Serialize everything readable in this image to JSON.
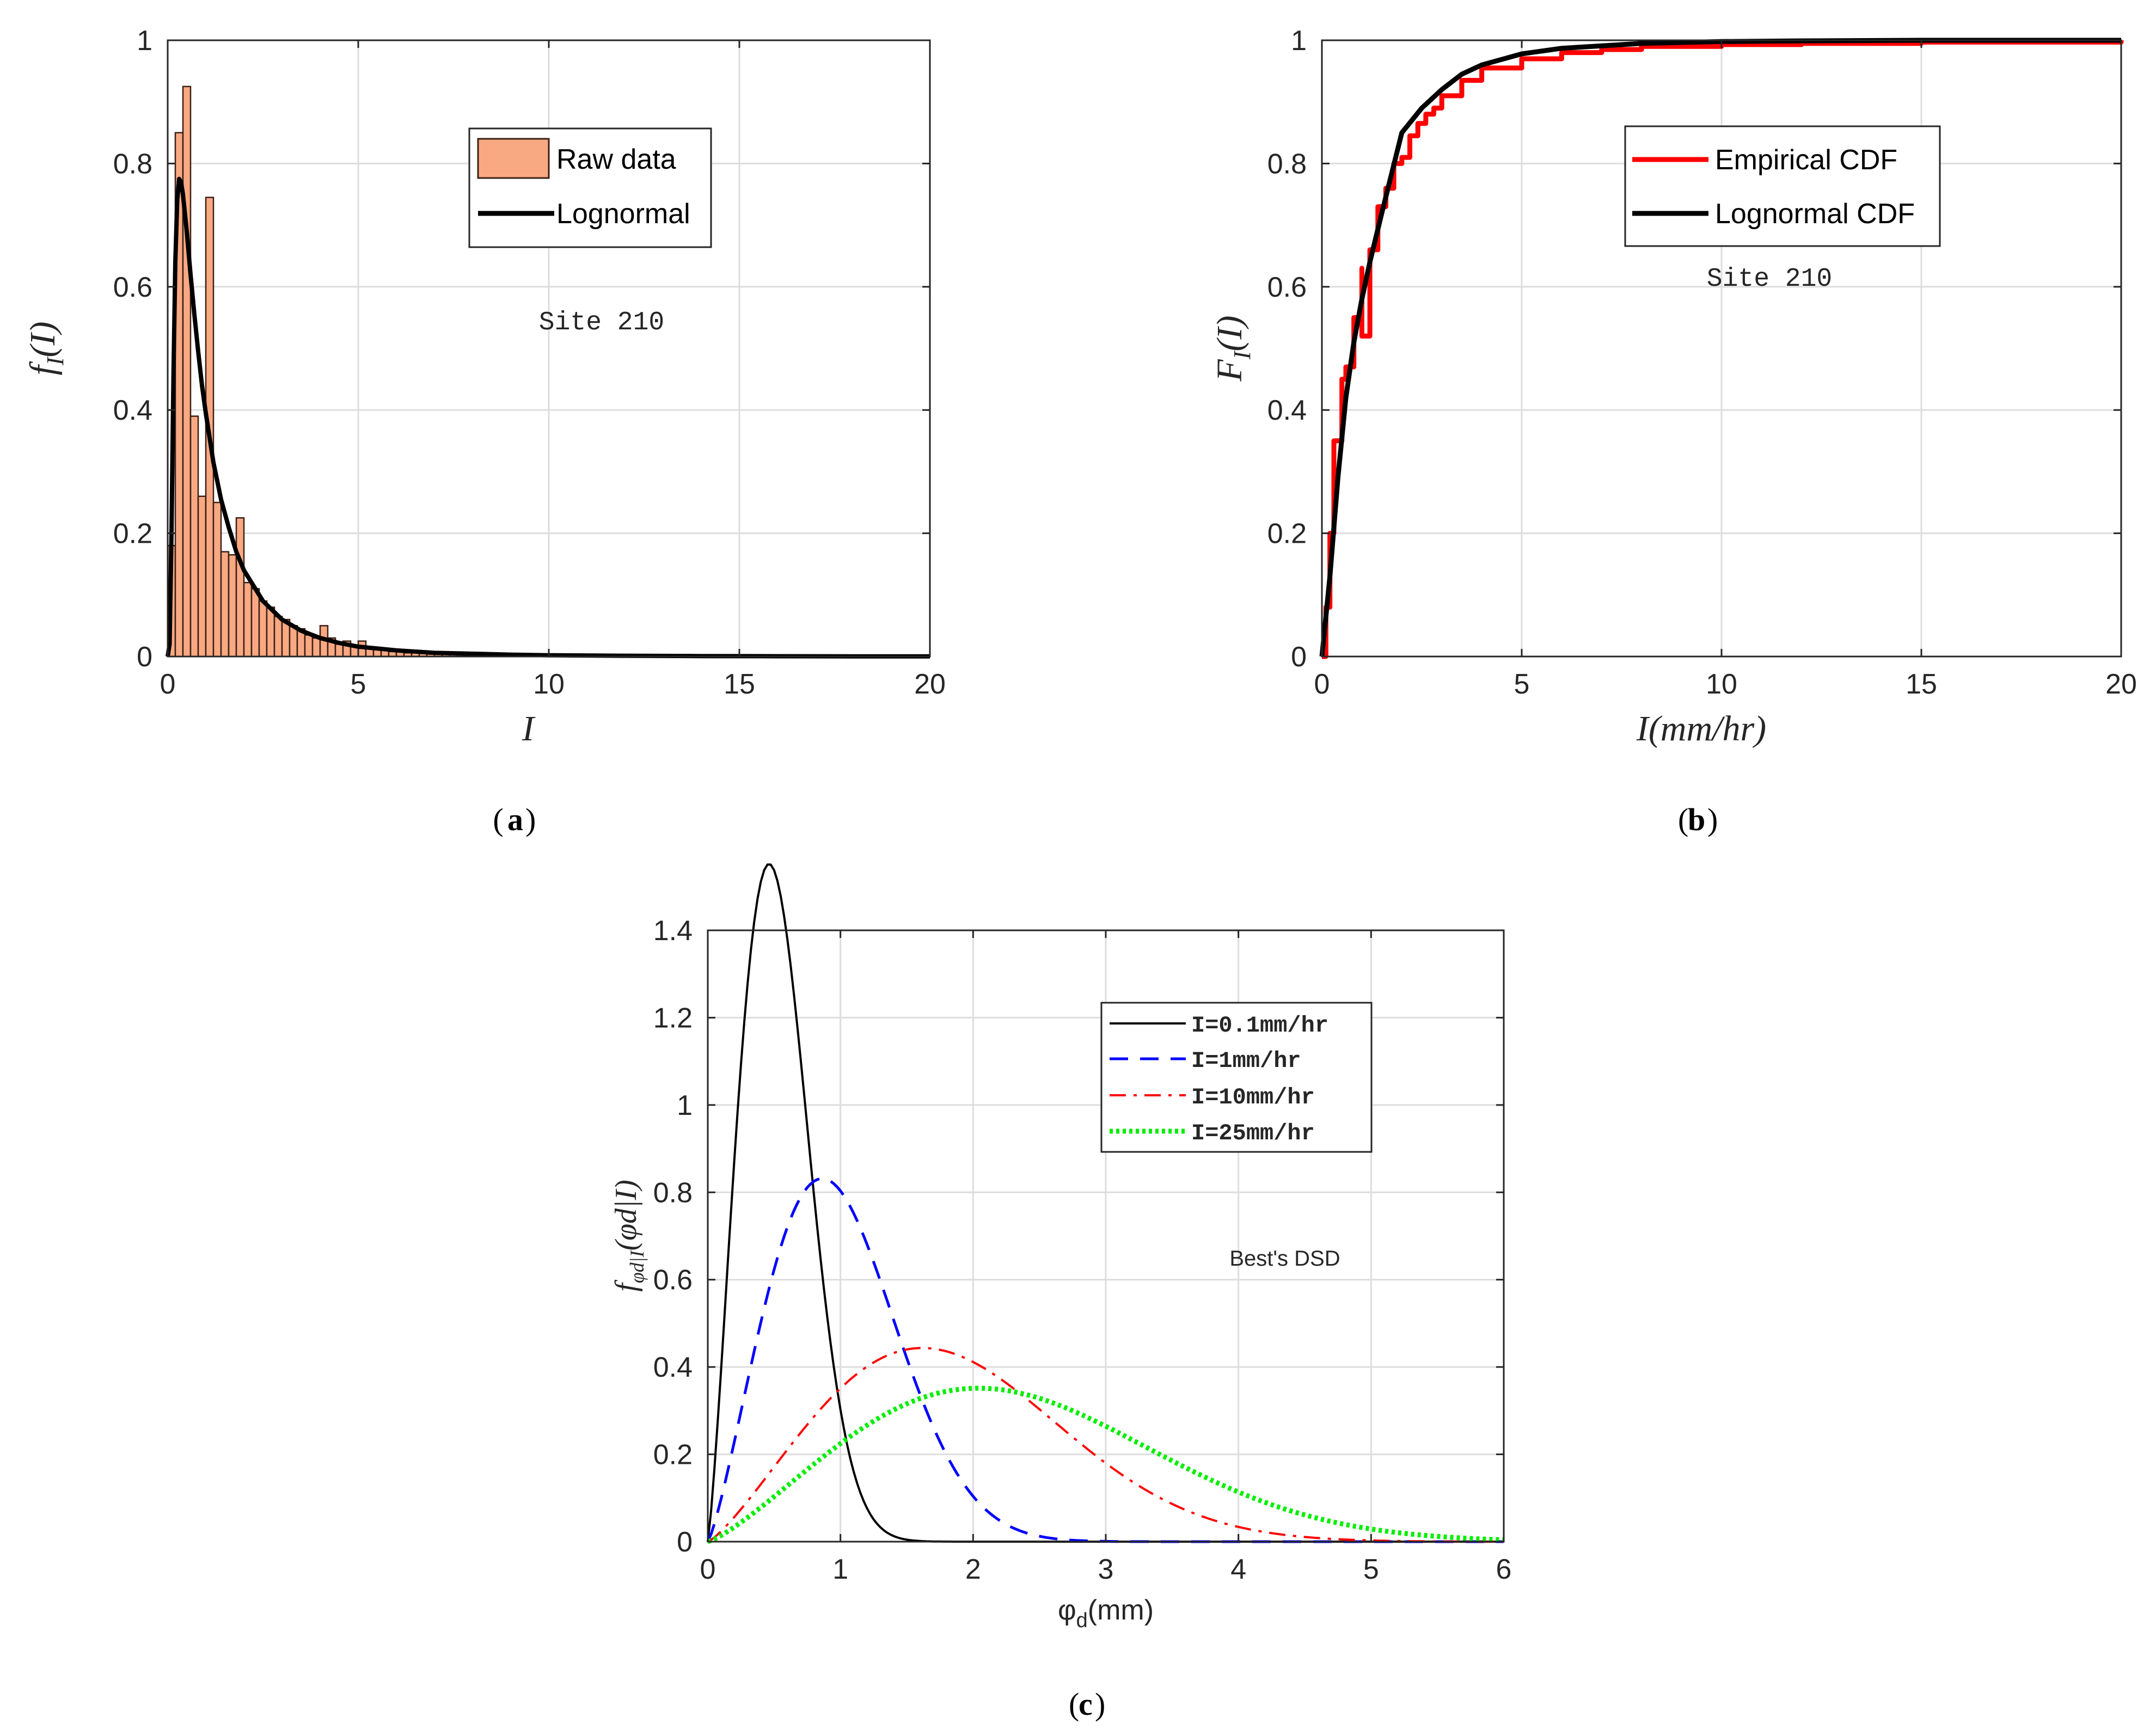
{
  "colors": {
    "bar_fill": "#f9a982",
    "bar_edge": "#3a2016",
    "black": "#000000",
    "red": "#ff0000",
    "blue": "#0000ff",
    "green": "#00ee00",
    "grid": "#dddddd",
    "axis": "#262626"
  },
  "chart_data": [
    {
      "id": "a",
      "type": "histogram",
      "panel_label": "a",
      "xlabel": "I",
      "ylabel": "f_I(I)",
      "xlim": [
        0,
        20
      ],
      "ylim": [
        0,
        1
      ],
      "xticks": [
        "0",
        "5",
        "10",
        "15",
        "20"
      ],
      "yticks": [
        "0",
        "0.2",
        "0.4",
        "0.6",
        "0.8",
        "1"
      ],
      "grid": true,
      "annotation": "Site 210",
      "legend": {
        "position": "top-center",
        "entries": [
          "Raw data",
          "Lognormal"
        ]
      },
      "histogram": {
        "name": "Raw data",
        "bin_width": 0.2,
        "bin_starts": [
          0,
          0.2,
          0.4,
          0.6,
          0.8,
          1.0,
          1.2,
          1.4,
          1.6,
          1.8,
          2.0,
          2.2,
          2.4,
          2.6,
          2.8,
          3.0,
          3.2,
          3.4,
          3.6,
          3.8,
          4.0,
          4.2,
          4.4,
          4.6,
          4.8,
          5.0,
          5.2,
          5.4,
          5.6,
          5.8,
          6.0,
          6.2,
          6.4,
          6.6,
          6.8,
          7.0,
          7.2,
          7.4,
          7.6,
          7.8,
          8.0,
          8.2,
          8.4,
          8.6,
          8.8,
          9.0,
          9.2,
          9.4,
          9.6,
          9.8
        ],
        "values": [
          0.18,
          0.85,
          0.925,
          0.39,
          0.26,
          0.745,
          0.25,
          0.17,
          0.165,
          0.225,
          0.12,
          0.11,
          0.09,
          0.08,
          0.065,
          0.06,
          0.05,
          0.045,
          0.035,
          0.03,
          0.05,
          0.03,
          0.02,
          0.025,
          0.018,
          0.025,
          0.015,
          0.012,
          0.01,
          0.008,
          0.008,
          0.006,
          0.006,
          0.005,
          0.004,
          0.004,
          0.004,
          0.003,
          0.003,
          0.003,
          0.003,
          0.003,
          0.002,
          0.002,
          0.002,
          0.002,
          0.002,
          0.002,
          0.001,
          0.001
        ]
      },
      "series": [
        {
          "name": "Lognormal",
          "color": "#000000",
          "style": "solid",
          "x": [
            0,
            0.05,
            0.1,
            0.15,
            0.2,
            0.25,
            0.3,
            0.35,
            0.4,
            0.45,
            0.5,
            0.6,
            0.7,
            0.8,
            0.9,
            1.0,
            1.2,
            1.4,
            1.6,
            1.8,
            2.0,
            2.5,
            3.0,
            3.5,
            4.0,
            4.5,
            5.0,
            6.0,
            7.0,
            8.0,
            9.0,
            10,
            12,
            14,
            16,
            18,
            20
          ],
          "y": [
            0,
            0.02,
            0.2,
            0.45,
            0.64,
            0.74,
            0.775,
            0.77,
            0.75,
            0.72,
            0.69,
            0.62,
            0.555,
            0.495,
            0.44,
            0.395,
            0.315,
            0.255,
            0.21,
            0.17,
            0.14,
            0.09,
            0.06,
            0.042,
            0.03,
            0.022,
            0.016,
            0.01,
            0.006,
            0.0045,
            0.003,
            0.002,
            0.0012,
            0.0007,
            0.0004,
            0.0003,
            0.0002
          ]
        }
      ]
    },
    {
      "id": "b",
      "type": "line",
      "panel_label": "b",
      "xlabel": "I(mm/hr)",
      "ylabel": "F_I(I)",
      "xlim": [
        0,
        20
      ],
      "ylim": [
        0,
        1
      ],
      "xticks": [
        "0",
        "5",
        "10",
        "15",
        "20"
      ],
      "yticks": [
        "0",
        "0.2",
        "0.4",
        "0.6",
        "0.8",
        "1"
      ],
      "grid": true,
      "annotation": "Site 210",
      "legend": {
        "position": "top-center",
        "entries": [
          "Empirical CDF",
          "Lognormal CDF"
        ]
      },
      "series": [
        {
          "name": "Empirical CDF",
          "color": "#ff0000",
          "style": "solid",
          "x": [
            0,
            0.1,
            0.2,
            0.3,
            0.4,
            0.5,
            0.6,
            0.8,
            1.0,
            1.0,
            1.2,
            1.4,
            1.6,
            1.8,
            2.0,
            2.2,
            2.4,
            2.6,
            2.8,
            3.0,
            3.5,
            4.0,
            5.0,
            6.0,
            7.0,
            8.0,
            10,
            12,
            15,
            20
          ],
          "y": [
            0,
            0.08,
            0.2,
            0.35,
            0.35,
            0.45,
            0.47,
            0.55,
            0.63,
            0.52,
            0.66,
            0.73,
            0.76,
            0.8,
            0.81,
            0.845,
            0.865,
            0.88,
            0.89,
            0.91,
            0.935,
            0.955,
            0.97,
            0.98,
            0.985,
            0.99,
            0.993,
            0.995,
            0.997,
            1.0
          ]
        },
        {
          "name": "Lognormal CDF",
          "color": "#000000",
          "style": "solid",
          "x": [
            0,
            0.2,
            0.4,
            0.6,
            0.8,
            1.0,
            1.2,
            1.5,
            2.0,
            2.5,
            3.0,
            3.5,
            4.0,
            5.0,
            6.0,
            8.0,
            10,
            12,
            15,
            20
          ],
          "y": [
            0,
            0.13,
            0.29,
            0.42,
            0.51,
            0.58,
            0.64,
            0.72,
            0.85,
            0.89,
            0.92,
            0.945,
            0.96,
            0.978,
            0.987,
            0.995,
            0.998,
            0.999,
            1.0,
            1.0
          ]
        }
      ]
    },
    {
      "id": "c",
      "type": "line",
      "panel_label": "c",
      "xlabel": "φ_d(mm)",
      "ylabel": "f_{φd|I}(φd|I)",
      "xlim": [
        0,
        6
      ],
      "ylim": [
        0,
        1.4
      ],
      "xticks": [
        "0",
        "1",
        "2",
        "3",
        "4",
        "5",
        "6"
      ],
      "yticks": [
        "0",
        "0.2",
        "0.4",
        "0.6",
        "0.8",
        "1",
        "1.2",
        "1.4"
      ],
      "grid": true,
      "annotation": "Best's DSD",
      "legend": {
        "position": "top-right",
        "entries": [
          "I=0.1mm/hr",
          "I=1mm/hr",
          "I=10mm/hr",
          "I=25mm/hr"
        ]
      },
      "series": [
        {
          "name": "I=0.1mm/hr",
          "color": "#000000",
          "style": "solid",
          "model": {
            "a": 0.6,
            "n": 2.25
          }
        },
        {
          "name": "I=1mm/hr",
          "color": "#0000ff",
          "style": "dashed",
          "model": {
            "a": 1.12,
            "n": 2.25
          }
        },
        {
          "name": "I=10mm/hr",
          "color": "#ff0000",
          "style": "dashdot",
          "model": {
            "a": 2.1,
            "n": 2.25
          }
        },
        {
          "name": "I=25mm/hr",
          "color": "#00ee00",
          "style": "dotted",
          "model": {
            "a": 2.65,
            "n": 2.25
          }
        }
      ]
    }
  ]
}
